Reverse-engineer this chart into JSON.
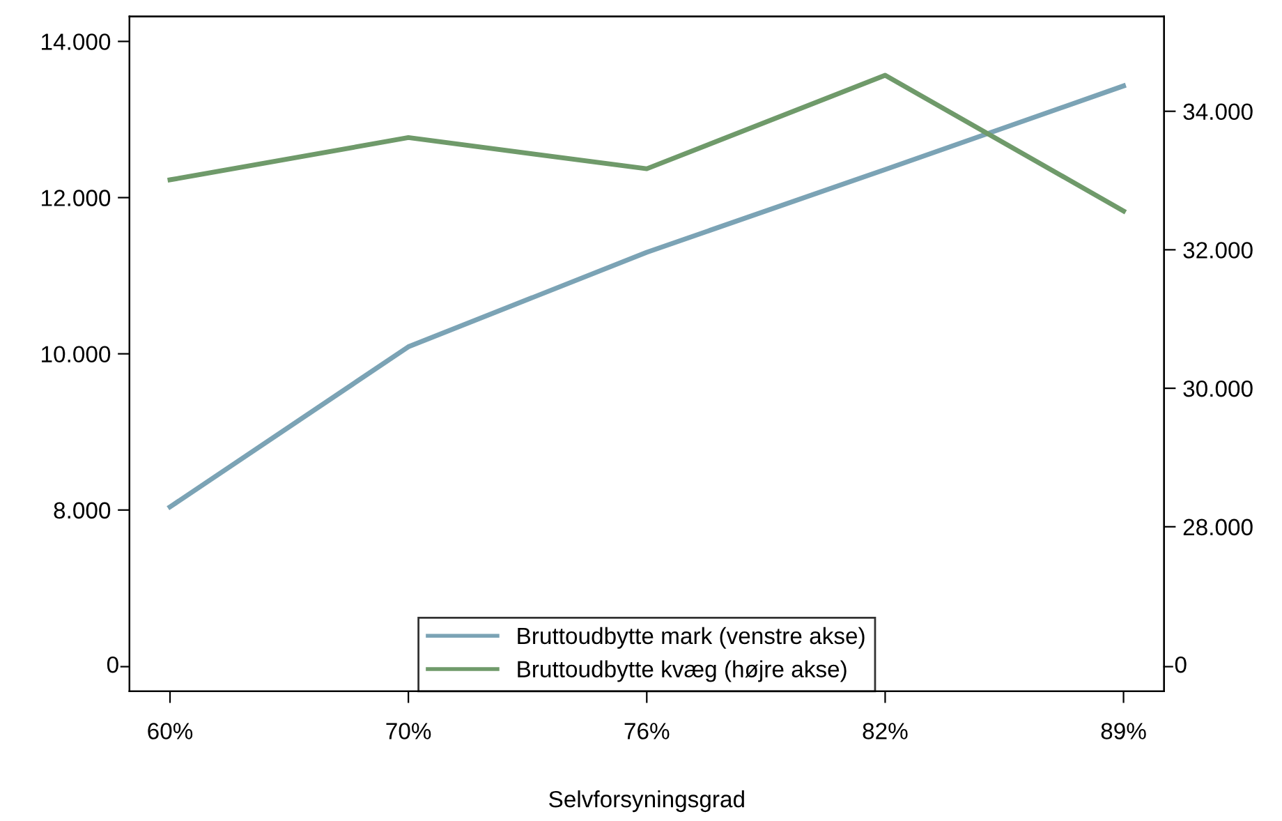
{
  "chart_data": {
    "type": "line",
    "categories": [
      "60%",
      "70%",
      "76%",
      "82%",
      "89%"
    ],
    "series": [
      {
        "name": "Bruttoudbytte mark (venstre akse)",
        "color": "#7ba3b5",
        "values": [
          8040,
          10090,
          11300,
          12360,
          13430
        ]
      },
      {
        "name": "Bruttoudbytte kvæg (højre akse)",
        "color": "#6f9a6a",
        "values": [
          33010,
          33620,
          33170,
          34520,
          32560
        ],
        "axis": "y2"
      }
    ],
    "xlabel": "Selvforsyningsgrad",
    "ylim": [
      5679,
      14320
    ],
    "yticks": [
      {
        "value": 8000,
        "label": "8.000"
      },
      {
        "value": 10000,
        "label": "10.000"
      },
      {
        "value": 12000,
        "label": "12.000"
      },
      {
        "value": 14000,
        "label": "14.000"
      }
    ],
    "y2lim": [
      25624,
      35370
    ],
    "y2ticks": [
      {
        "value": 28000,
        "label": "28.000"
      },
      {
        "value": 30000,
        "label": "30.000"
      },
      {
        "value": 32000,
        "label": "32.000"
      },
      {
        "value": 34000,
        "label": "34.000"
      }
    ],
    "annotations": [
      "0",
      "0"
    ],
    "legend": "bottom",
    "marker": "none",
    "line_style": "solid"
  }
}
